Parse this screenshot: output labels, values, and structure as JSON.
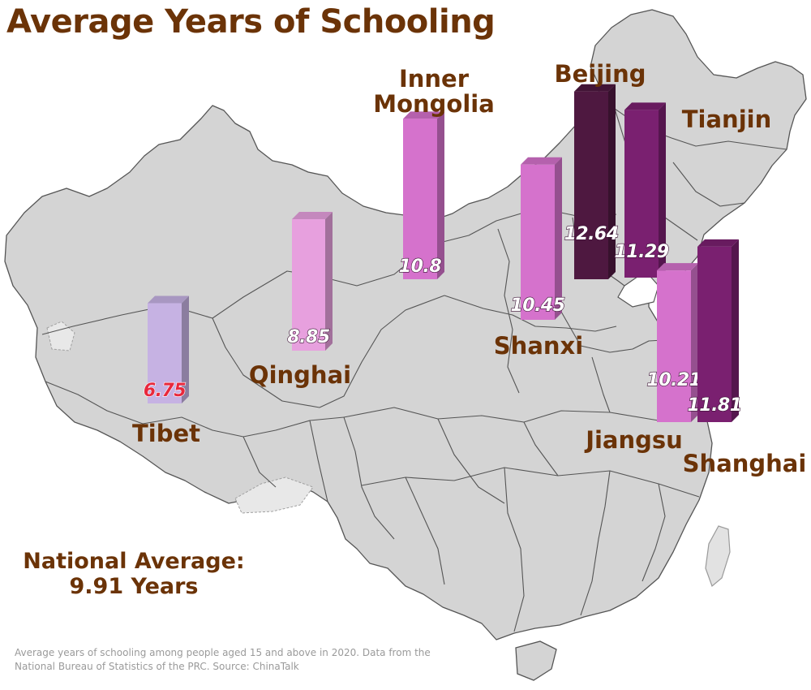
{
  "header": {
    "title": "Average Years of Schooling"
  },
  "national_average": {
    "line1": "National Average:",
    "line2": "9.91 Years"
  },
  "footnote": "Average years of schooling among people aged 15 and above in 2020.  Data from the National Bureau of Statistics of the PRC. Source: ChinaTalk",
  "colors": {
    "title": "#6b3307",
    "map_fill": "#d4d4d4",
    "map_stroke": "#555555",
    "tibet": "#c6b2e3",
    "qinghai": "#e7a0de",
    "mid_pink": "#d572cc",
    "dark_purple": "#7a2070",
    "darkest_purple": "#4e1840",
    "low_value_text": "#e8283c"
  },
  "chart_data": {
    "type": "bar",
    "title": "Average Years of Schooling",
    "categories": [
      "Tibet",
      "Qinghai",
      "Inner Mongolia",
      "Shanxi",
      "Beijing",
      "Tianjin",
      "Jiangsu",
      "Shanghai"
    ],
    "values": [
      6.75,
      8.85,
      10.8,
      10.45,
      12.64,
      11.29,
      10.21,
      11.81
    ],
    "value_labels": [
      "6.75",
      "8.85",
      "10.8",
      "10.45",
      "12.64",
      "11.29",
      "10.21",
      "11.81"
    ],
    "unit": "years",
    "reference": {
      "label": "National Average",
      "value": 9.91
    },
    "legend": "none"
  }
}
